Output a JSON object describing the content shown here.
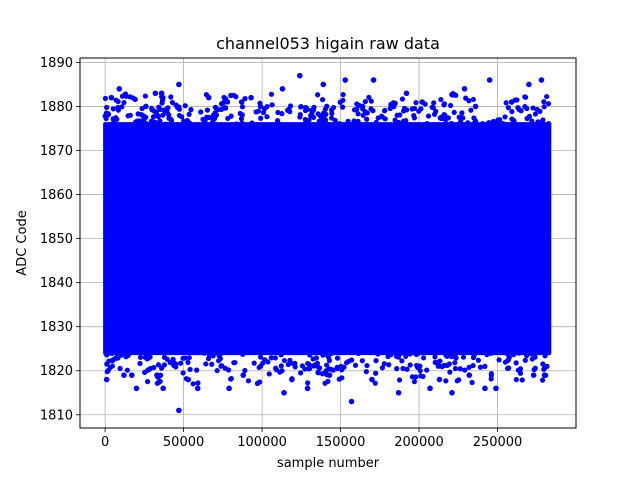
{
  "chart_data": {
    "type": "scatter",
    "title": "channel053 higain raw data",
    "xlabel": "sample number",
    "ylabel": "ADC Code",
    "xlim": [
      -16000,
      300000
    ],
    "ylim": [
      1807,
      1891
    ],
    "xticks": [
      0,
      50000,
      100000,
      150000,
      200000,
      250000
    ],
    "xtick_labels": [
      "0",
      "50000",
      "100000",
      "150000",
      "200000",
      "250000"
    ],
    "yticks": [
      1810,
      1820,
      1830,
      1840,
      1850,
      1860,
      1870,
      1880,
      1890
    ],
    "ytick_labels": [
      "1810",
      "1820",
      "1830",
      "1840",
      "1850",
      "1860",
      "1870",
      "1880",
      "1890"
    ],
    "grid": true,
    "marker_color": "#0000ff",
    "dense_band": {
      "x_range": [
        0,
        283000
      ],
      "y_range": [
        1824,
        1876
      ]
    },
    "points": [
      {
        "x": 47000,
        "y": 1811
      },
      {
        "x": 157000,
        "y": 1813
      },
      {
        "x": 114000,
        "y": 1815
      },
      {
        "x": 187000,
        "y": 1815
      },
      {
        "x": 221000,
        "y": 1815
      },
      {
        "x": 20000,
        "y": 1816
      },
      {
        "x": 37000,
        "y": 1816
      },
      {
        "x": 59000,
        "y": 1816
      },
      {
        "x": 79000,
        "y": 1816
      },
      {
        "x": 129000,
        "y": 1816
      },
      {
        "x": 207000,
        "y": 1816
      },
      {
        "x": 242000,
        "y": 1816
      },
      {
        "x": 249000,
        "y": 1816
      },
      {
        "x": 1000,
        "y": 1818
      },
      {
        "x": 53000,
        "y": 1818
      },
      {
        "x": 119000,
        "y": 1818
      },
      {
        "x": 170000,
        "y": 1818
      },
      {
        "x": 213000,
        "y": 1818
      },
      {
        "x": 12000,
        "y": 1819
      },
      {
        "x": 17000,
        "y": 1819
      },
      {
        "x": 33000,
        "y": 1819
      },
      {
        "x": 88000,
        "y": 1819
      },
      {
        "x": 143000,
        "y": 1819
      },
      {
        "x": 232000,
        "y": 1819
      },
      {
        "x": 273000,
        "y": 1819
      },
      {
        "x": 280000,
        "y": 1819
      },
      {
        "x": 4000,
        "y": 1882
      },
      {
        "x": 9000,
        "y": 1884
      },
      {
        "x": 32000,
        "y": 1883
      },
      {
        "x": 36000,
        "y": 1883
      },
      {
        "x": 47000,
        "y": 1885
      },
      {
        "x": 66000,
        "y": 1882
      },
      {
        "x": 93000,
        "y": 1882
      },
      {
        "x": 124000,
        "y": 1887
      },
      {
        "x": 139000,
        "y": 1885
      },
      {
        "x": 153000,
        "y": 1886
      },
      {
        "x": 171000,
        "y": 1886
      },
      {
        "x": 192000,
        "y": 1883
      },
      {
        "x": 229000,
        "y": 1884
      },
      {
        "x": 245000,
        "y": 1886
      },
      {
        "x": 270000,
        "y": 1885
      },
      {
        "x": 278000,
        "y": 1886
      },
      {
        "x": 76000,
        "y": 1881
      },
      {
        "x": 113000,
        "y": 1884
      },
      {
        "x": 87000,
        "y": 1881
      },
      {
        "x": 202000,
        "y": 1881
      },
      {
        "x": 259000,
        "y": 1881
      },
      {
        "x": 26000,
        "y": 1880
      },
      {
        "x": 99000,
        "y": 1880
      },
      {
        "x": 164000,
        "y": 1880
      },
      {
        "x": 236000,
        "y": 1880
      }
    ]
  }
}
